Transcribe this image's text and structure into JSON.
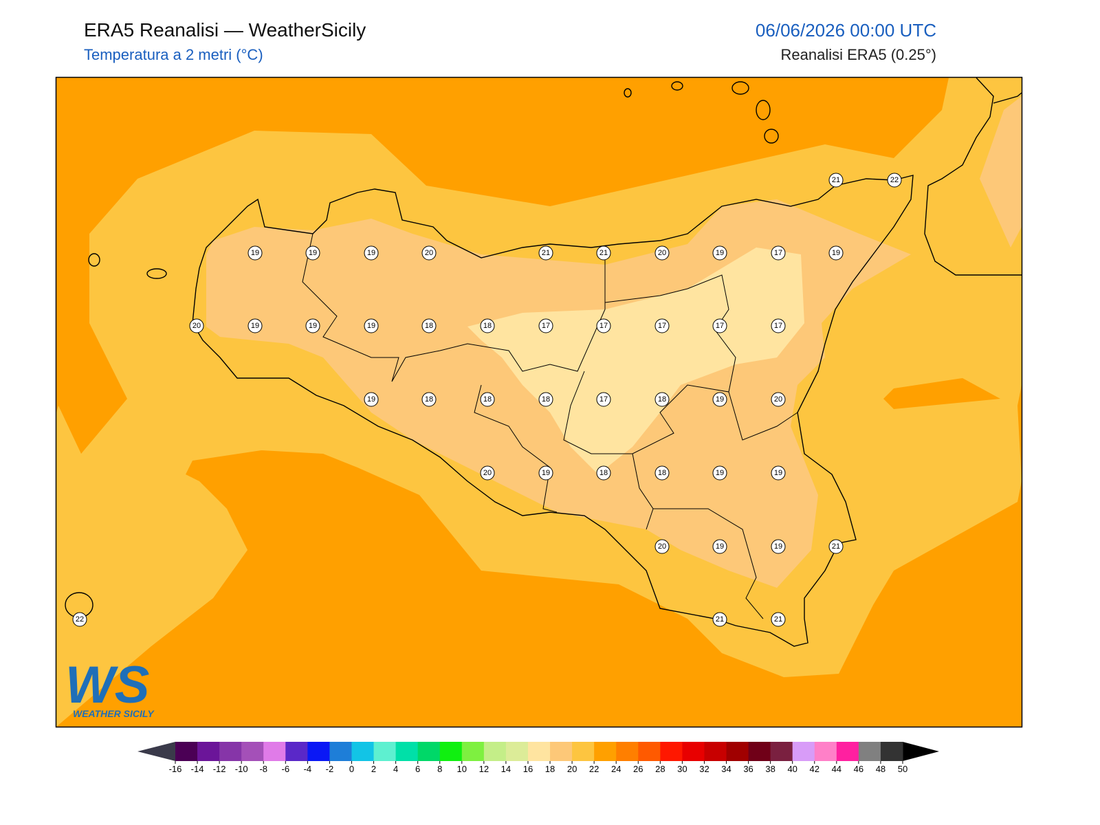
{
  "header": {
    "title": "ERA5 Reanalisi — WeatherSicily",
    "subtitle": "Temperatura a 2 metri (°C)",
    "datetime": "06/06/2026 00:00 UTC",
    "source": "Reanalisi ERA5 (0.25°)"
  },
  "stations": [
    21,
    22,
    19,
    19,
    19,
    20,
    21,
    21,
    20,
    19,
    17,
    19,
    20,
    19,
    19,
    19,
    18,
    18,
    17,
    17,
    17,
    17,
    17,
    19,
    18,
    18,
    18,
    17,
    18,
    19,
    20,
    20,
    19,
    18,
    18,
    19,
    19,
    20,
    19,
    19,
    21,
    22,
    21,
    21
  ],
  "colorbar": {
    "ticks": [
      -16,
      -14,
      -12,
      -10,
      -8,
      -6,
      -4,
      -2,
      0,
      2,
      4,
      6,
      8,
      10,
      12,
      14,
      16,
      18,
      20,
      22,
      24,
      26,
      28,
      30,
      32,
      34,
      36,
      38,
      40,
      42,
      44,
      46,
      48,
      50
    ],
    "colors": [
      "#4b0055",
      "#6b1599",
      "#8635a8",
      "#a450b8",
      "#e07be8",
      "#5a28c8",
      "#0a18f5",
      "#1e7ed8",
      "#12c4e6",
      "#5ef0d0",
      "#00e0a8",
      "#00d868",
      "#10f010",
      "#7ef040",
      "#c4ee88",
      "#dcec98",
      "#ffe4a0",
      "#fdc878",
      "#fdc540",
      "#ffa000",
      "#ff7f00",
      "#ff5a00",
      "#ff1800",
      "#e80000",
      "#c80000",
      "#a00000",
      "#700018",
      "#7a2040",
      "#d89cf8",
      "#ff80c8",
      "#ff20a0",
      "#808080",
      "#333333"
    ],
    "under_color": "#3a3a4a",
    "over_color": "#000000"
  },
  "logo": {
    "initials": "WS",
    "text": "WEATHER SICILY"
  }
}
